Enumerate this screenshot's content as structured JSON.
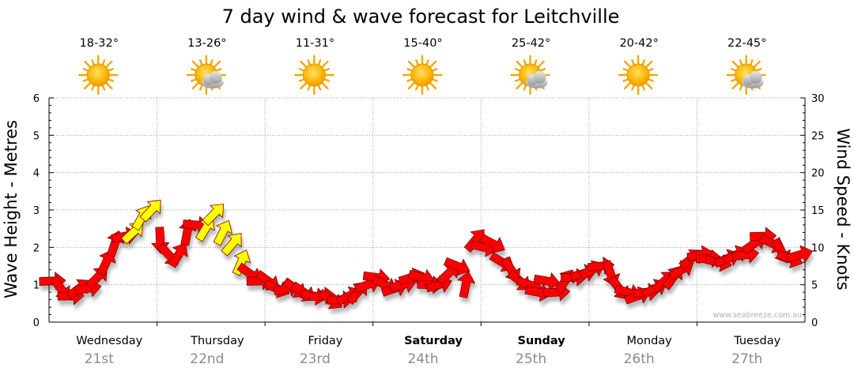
{
  "title": "7 day wind & wave forecast for Leitchville",
  "watermark": "www.seabreeze.com.au",
  "days": [
    {
      "name": "Wednesday",
      "date": "21st",
      "temp": "18-32°",
      "icon": "sun-icon",
      "bold": false
    },
    {
      "name": "Thursday",
      "date": "22nd",
      "temp": "13-26°",
      "icon": "sun-cloud-icon",
      "bold": false
    },
    {
      "name": "Friday",
      "date": "23rd",
      "temp": "11-31°",
      "icon": "sun-icon",
      "bold": false
    },
    {
      "name": "Saturday",
      "date": "24th",
      "temp": "15-40°",
      "icon": "sun-icon",
      "bold": true
    },
    {
      "name": "Sunday",
      "date": "25th",
      "temp": "25-42°",
      "icon": "sun-cloud-icon",
      "bold": true
    },
    {
      "name": "Monday",
      "date": "26th",
      "temp": "20-42°",
      "icon": "sun-icon",
      "bold": false
    },
    {
      "name": "Tuesday",
      "date": "27th",
      "temp": "22-45°",
      "icon": "sun-cloud-icon",
      "bold": false
    }
  ],
  "colors": {
    "wind_arrow": "#ff0000",
    "gust_arrow": "#ffff00",
    "arrow_stroke": "#7a0000",
    "grid": "#9a9a9a",
    "sun": "#ffc21a",
    "cloud": "#c8c8c8"
  },
  "chart_data": {
    "type": "line",
    "title": "7 day wind & wave forecast for Leitchville",
    "ylabel_left": "Wave Height - Metres",
    "ylabel_right": "Wind Speed - Knots",
    "ylim_left": [
      0,
      6
    ],
    "ylim_right": [
      0,
      30
    ],
    "left_ticks": [
      0,
      1,
      2,
      3,
      4,
      5,
      6
    ],
    "right_ticks": [
      0,
      5,
      10,
      15,
      20,
      25,
      30
    ],
    "grid": true,
    "categories": [
      "Wednesday 21st",
      "Thursday 22nd",
      "Friday 23rd",
      "Saturday 24th",
      "Sunday 25th",
      "Monday 26th",
      "Tuesday 27th"
    ],
    "series": [
      {
        "x_days": [
          0.0,
          0.08,
          0.17,
          0.25,
          0.33,
          0.42,
          0.5,
          0.58,
          0.67,
          0.75,
          0.83,
          0.92,
          1.0,
          1.08,
          1.17,
          1.25,
          1.33,
          1.42,
          1.5,
          1.58,
          1.67,
          1.75,
          1.83,
          1.92,
          2.0,
          2.08,
          2.17,
          2.25,
          2.33,
          2.42,
          2.5,
          2.58,
          2.67,
          2.75,
          2.83,
          2.92,
          3.0,
          3.08,
          3.17,
          3.25,
          3.33,
          3.42,
          3.5,
          3.58,
          3.67,
          3.75,
          3.83,
          3.92,
          4.0,
          4.08,
          4.17,
          4.25,
          4.33,
          4.42,
          4.5,
          4.58,
          4.67,
          4.75,
          4.83,
          4.92,
          5.0,
          5.08,
          5.17,
          5.25,
          5.33,
          5.42,
          5.5,
          5.58,
          5.67,
          5.75,
          5.83,
          5.92,
          6.0,
          6.08,
          6.17,
          6.25,
          6.33,
          6.42,
          6.5,
          6.58,
          6.67,
          6.75,
          6.83,
          6.92
        ],
        "knots": [
          5.5,
          4.5,
          3.5,
          4.5,
          4.5,
          6,
          8,
          10.5,
          11.5,
          12,
          14,
          15,
          11,
          9,
          9,
          12,
          13,
          12.5,
          14.5,
          12,
          10.5,
          8,
          6.5,
          5.5,
          5.5,
          4.5,
          4.5,
          4.5,
          4,
          3.5,
          3.5,
          3,
          3,
          3.5,
          4,
          5,
          6,
          5,
          4.5,
          5,
          6,
          6,
          5,
          5,
          6.5,
          7.5,
          5,
          11,
          10,
          10.5,
          8,
          7,
          5.5,
          5,
          4,
          5.5,
          4,
          5.5,
          6,
          6.5,
          7,
          7.5,
          6.5,
          4.5,
          4,
          3.5,
          4,
          4.5,
          5.5,
          6,
          7,
          8.5,
          9,
          8.5,
          8,
          8.5,
          9,
          9,
          10.5,
          11.5,
          10.5,
          9.5,
          8.5,
          9
        ]
      }
    ],
    "gust_knots_yellow_segments": [
      [
        0.75,
        0.92
      ],
      [
        1.42,
        1.75
      ]
    ]
  }
}
